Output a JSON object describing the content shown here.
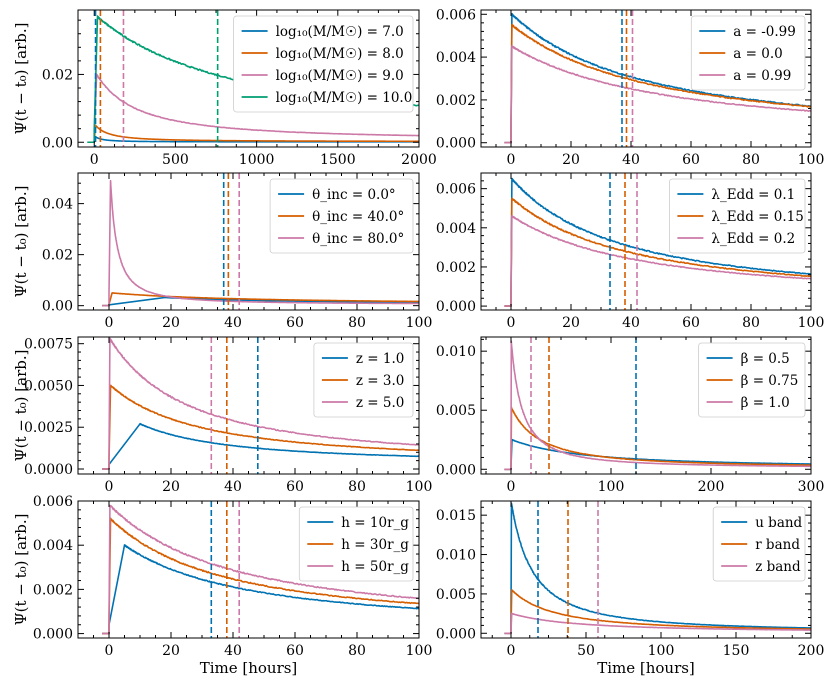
{
  "figure": {
    "common_xlabel": "Time [hours]",
    "common_ylabel": "Ψ(t − t₀) [arb.]"
  },
  "chart_data": [
    {
      "type": "line",
      "panel": "a",
      "xlim": [
        -100,
        2000
      ],
      "ylim": [
        -0.0014,
        0.039
      ],
      "xticks": [
        0,
        500,
        1000,
        1500,
        2000
      ],
      "xticklabels": [
        "0",
        "500",
        "1000",
        "1500",
        "2000"
      ],
      "yticks": [
        0,
        0.02
      ],
      "yticklabels": [
        "0.00",
        "0.02"
      ],
      "legend": "upper right",
      "xlabel": "",
      "ylabel": "Ψ(t − t₀) [arb.]",
      "series": [
        {
          "name": "log₁₀(M/M☉) = 7.0",
          "color": "#0072B2",
          "peak_x": 2,
          "peak": 0.0018,
          "end": 0.0001,
          "tau": 60,
          "vline": 8
        },
        {
          "name": "log₁₀(M/M☉) = 8.0",
          "color": "#D55E00",
          "peak_x": 8,
          "peak": 0.005,
          "end": 0.0002,
          "tau": 120,
          "vline": 38
        },
        {
          "name": "log₁₀(M/M☉) = 9.0",
          "color": "#CC79A7",
          "peak_x": 15,
          "peak": 0.02,
          "end": 0.0006,
          "tau": 350,
          "vline": 180
        },
        {
          "name": "log₁₀(M/M☉) = 10.0",
          "color": "#009E73",
          "peak_x": 20,
          "peak": 0.037,
          "end": 0.0018,
          "tau": 1200,
          "vline": 760
        }
      ]
    },
    {
      "type": "line",
      "panel": "b",
      "xlim": [
        -10,
        100
      ],
      "ylim": [
        -0.0002,
        0.0062
      ],
      "xticks": [
        0,
        20,
        40,
        60,
        80,
        100
      ],
      "xticklabels": [
        "0",
        "20",
        "40",
        "60",
        "80",
        "100"
      ],
      "yticks": [
        0,
        0.002,
        0.004,
        0.006
      ],
      "yticklabels": [
        "0.000",
        "0.002",
        "0.004",
        "0.006"
      ],
      "legend": "upper right",
      "xlabel": "",
      "ylabel": "",
      "series": [
        {
          "name": "a = -0.99",
          "color": "#0072B2",
          "peak_x": 0.3,
          "peak": 0.006,
          "end": 0.00025,
          "tau": 60,
          "vline": 37
        },
        {
          "name": "a = 0.0",
          "color": "#D55E00",
          "peak_x": 0.3,
          "peak": 0.0055,
          "end": 0.00025,
          "tau": 65,
          "vline": 38.5
        },
        {
          "name": "a = 0.99",
          "color": "#CC79A7",
          "peak_x": 0.3,
          "peak": 0.0045,
          "end": 0.00025,
          "tau": 70,
          "vline": 40.5
        }
      ]
    },
    {
      "type": "line",
      "panel": "c",
      "xlim": [
        -10,
        100
      ],
      "ylim": [
        -0.0017,
        0.052
      ],
      "xticks": [
        0,
        20,
        40,
        60,
        80,
        100
      ],
      "xticklabels": [
        "0",
        "20",
        "40",
        "60",
        "80",
        "100"
      ],
      "yticks": [
        0,
        0.02,
        0.04
      ],
      "yticklabels": [
        "0.00",
        "0.02",
        "0.04"
      ],
      "legend": "upper right",
      "xlabel": "",
      "ylabel": "Ψ(t − t₀) [arb.]",
      "series": [
        {
          "name": "θ_inc = 0.0°",
          "color": "#0072B2",
          "peak_x": 18,
          "peak": 0.0032,
          "end": 0.0005,
          "tau": 60,
          "vline": 37
        },
        {
          "name": "θ_inc = 40.0°",
          "color": "#D55E00",
          "peak_x": 1,
          "peak": 0.005,
          "end": 0.0005,
          "tau": 60,
          "vline": 38.5
        },
        {
          "name": "θ_inc = 80.0°",
          "color": "#CC79A7",
          "peak_x": 0.5,
          "peak": 0.049,
          "end": 0.0005,
          "tau": 3,
          "vline": 42
        }
      ]
    },
    {
      "type": "line",
      "panel": "d",
      "xlim": [
        -10,
        100
      ],
      "ylim": [
        -0.0002,
        0.0068
      ],
      "xticks": [
        0,
        20,
        40,
        60,
        80,
        100
      ],
      "xticklabels": [
        "0",
        "20",
        "40",
        "60",
        "80",
        "100"
      ],
      "yticks": [
        0,
        0.002,
        0.004,
        0.006
      ],
      "yticklabels": [
        "0.000",
        "0.002",
        "0.004",
        "0.006"
      ],
      "legend": "upper right",
      "xlabel": "",
      "ylabel": "",
      "series": [
        {
          "name": "λ_Edd = 0.1",
          "color": "#0072B2",
          "peak_x": 0.3,
          "peak": 0.0065,
          "end": 0.0003,
          "tau": 50,
          "vline": 33
        },
        {
          "name": "λ_Edd = 0.15",
          "color": "#D55E00",
          "peak_x": 0.3,
          "peak": 0.0055,
          "end": 0.0003,
          "tau": 55,
          "vline": 38
        },
        {
          "name": "λ_Edd = 0.2",
          "color": "#CC79A7",
          "peak_x": 0.3,
          "peak": 0.0046,
          "end": 0.0003,
          "tau": 60,
          "vline": 42
        }
      ]
    },
    {
      "type": "line",
      "panel": "e",
      "xlim": [
        -10,
        100
      ],
      "ylim": [
        -0.0003,
        0.0079
      ],
      "xticks": [
        0,
        20,
        40,
        60,
        80,
        100
      ],
      "xticklabels": [
        "0",
        "20",
        "40",
        "60",
        "80",
        "100"
      ],
      "yticks": [
        0,
        0.0025,
        0.005,
        0.0075
      ],
      "yticklabels": [
        "0.0000",
        "0.0025",
        "0.0050",
        "0.0075"
      ],
      "legend": "upper right",
      "xlabel": "",
      "ylabel": "Ψ(t − t₀) [arb.]",
      "series": [
        {
          "name": "z = 1.0",
          "color": "#0072B2",
          "peak_x": 10,
          "peak": 0.0027,
          "end": 0.0003,
          "tau": 40,
          "vline": 48
        },
        {
          "name": "z = 3.0",
          "color": "#D55E00",
          "peak_x": 0.5,
          "peak": 0.005,
          "end": 0.0003,
          "tau": 40,
          "vline": 38
        },
        {
          "name": "z = 5.0",
          "color": "#CC79A7",
          "peak_x": 0.3,
          "peak": 0.0078,
          "end": 0.0003,
          "tau": 35,
          "vline": 33
        }
      ]
    },
    {
      "type": "line",
      "panel": "f",
      "xlim": [
        -30,
        300
      ],
      "ylim": [
        -0.0004,
        0.0112
      ],
      "xticks": [
        0,
        100,
        200,
        300
      ],
      "xticklabels": [
        "0",
        "100",
        "200",
        "300"
      ],
      "yticks": [
        0,
        0.005,
        0.01
      ],
      "yticklabels": [
        "0.000",
        "0.005",
        "0.010"
      ],
      "legend": "upper right",
      "xlabel": "",
      "ylabel": "",
      "series": [
        {
          "name": "β = 0.5",
          "color": "#0072B2",
          "peak_x": 1,
          "peak": 0.0025,
          "end": 0.0001,
          "tau": 100,
          "vline": 125
        },
        {
          "name": "β = 0.75",
          "color": "#D55E00",
          "peak_x": 0.5,
          "peak": 0.0052,
          "end": 0.0001,
          "tau": 40,
          "vline": 38
        },
        {
          "name": "β = 1.0",
          "color": "#CC79A7",
          "peak_x": 0.3,
          "peak": 0.0108,
          "end": 0.0001,
          "tau": 15,
          "vline": 20
        }
      ]
    },
    {
      "type": "line",
      "panel": "g",
      "xlim": [
        -10,
        100
      ],
      "ylim": [
        -0.0002,
        0.006
      ],
      "xticks": [
        0,
        20,
        40,
        60,
        80,
        100
      ],
      "xticklabels": [
        "0",
        "20",
        "40",
        "60",
        "80",
        "100"
      ],
      "yticks": [
        0,
        0.002,
        0.004,
        0.006
      ],
      "yticklabels": [
        "0.000",
        "0.002",
        "0.004",
        "0.006"
      ],
      "legend": "upper right",
      "xlabel": "Time [hours]",
      "ylabel": "Ψ(t − t₀) [arb.]",
      "series": [
        {
          "name": "h = 10r_g",
          "color": "#0072B2",
          "peak_x": 5,
          "peak": 0.004,
          "end": 0.0002,
          "tau": 55,
          "vline": 33
        },
        {
          "name": "h = 30r_g",
          "color": "#D55E00",
          "peak_x": 0.5,
          "peak": 0.0052,
          "end": 0.0003,
          "tau": 50,
          "vline": 38
        },
        {
          "name": "h = 50r_g",
          "color": "#CC79A7",
          "peak_x": 0.3,
          "peak": 0.0058,
          "end": 0.0003,
          "tau": 55,
          "vline": 42
        }
      ]
    },
    {
      "type": "line",
      "panel": "h",
      "xlim": [
        -20,
        200
      ],
      "ylim": [
        -0.0006,
        0.0168
      ],
      "xticks": [
        0,
        50,
        100,
        150,
        200
      ],
      "xticklabels": [
        "0",
        "50",
        "100",
        "150",
        "200"
      ],
      "yticks": [
        0,
        0.005,
        0.01,
        0.015
      ],
      "yticklabels": [
        "0.000",
        "0.005",
        "0.010",
        "0.015"
      ],
      "legend": "upper right",
      "xlabel": "Time [hours]",
      "ylabel": "",
      "series": [
        {
          "name": "u band",
          "color": "#0072B2",
          "peak_x": 0.3,
          "peak": 0.0165,
          "end": 0.0001,
          "tau": 20,
          "vline": 18
        },
        {
          "name": "r band",
          "color": "#D55E00",
          "peak_x": 0.5,
          "peak": 0.0055,
          "end": 0.0001,
          "tau": 40,
          "vline": 38
        },
        {
          "name": "z band",
          "color": "#CC79A7",
          "peak_x": 0.5,
          "peak": 0.0025,
          "end": 0.0001,
          "tau": 60,
          "vline": 58
        }
      ]
    }
  ]
}
